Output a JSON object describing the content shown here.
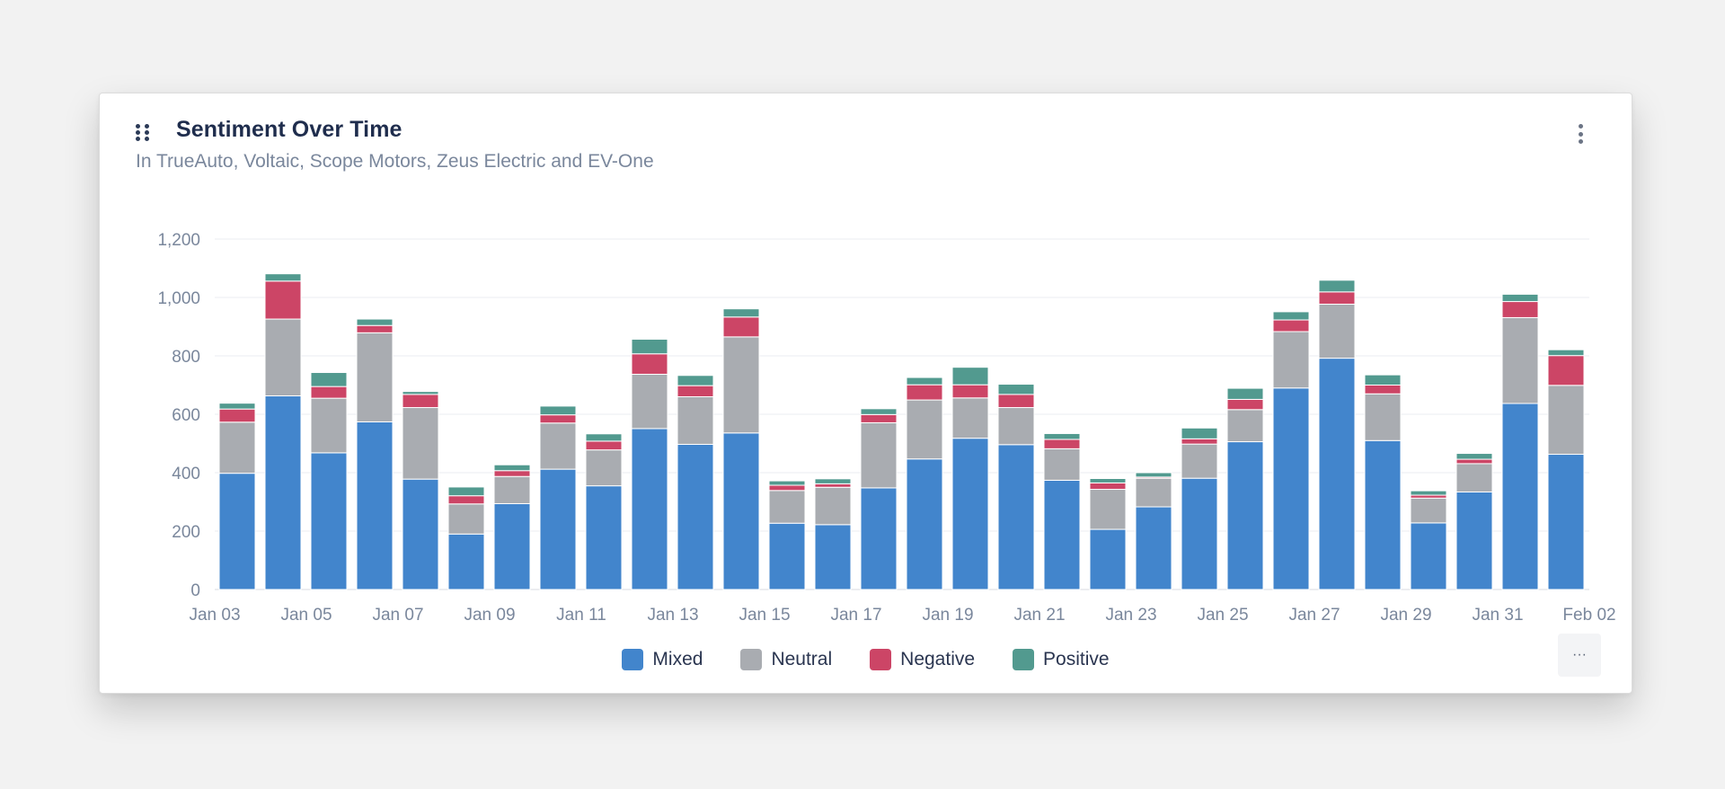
{
  "card": {
    "title": "Sentiment Over Time",
    "subtitle": "In TrueAuto, Voltaic, Scope Motors, Zeus Electric and EV-One",
    "more_label": "···",
    "icons": {
      "drag": "drag-handle-icon",
      "menu": "kebab-menu-icon"
    }
  },
  "chart_data": {
    "type": "bar",
    "stacked": true,
    "title": "Sentiment Over Time",
    "subtitle": "In TrueAuto, Voltaic, Scope Motors, Zeus Electric and EV-One",
    "ylim": [
      0,
      1200
    ],
    "yticks": [
      0,
      200,
      400,
      600,
      800,
      1000,
      1200
    ],
    "ytick_labels": [
      "0",
      "200",
      "400",
      "600",
      "800",
      "1,000",
      "1,200"
    ],
    "grid": true,
    "legend_position": "bottom-center",
    "x_tick_labels": [
      "Jan 03",
      "Jan 05",
      "Jan 07",
      "Jan 09",
      "Jan 11",
      "Jan 13",
      "Jan 15",
      "Jan 17",
      "Jan 19",
      "Jan 21",
      "Jan 23",
      "Jan 25",
      "Jan 27",
      "Jan 29",
      "Jan 31",
      "Feb 02"
    ],
    "categories": [
      "Jan 03",
      "Jan 04",
      "Jan 05",
      "Jan 06",
      "Jan 07",
      "Jan 08",
      "Jan 09",
      "Jan 10",
      "Jan 11",
      "Jan 12",
      "Jan 13",
      "Jan 14",
      "Jan 15",
      "Jan 16",
      "Jan 17",
      "Jan 18",
      "Jan 19",
      "Jan 20",
      "Jan 21",
      "Jan 22",
      "Jan 23",
      "Jan 24",
      "Jan 25",
      "Jan 26",
      "Jan 27",
      "Jan 28",
      "Jan 29",
      "Jan 30",
      "Jan 31",
      "Feb 01"
    ],
    "series": [
      {
        "name": "Mixed",
        "color": "#4285cc",
        "values": [
          398,
          663,
          468,
          574,
          378,
          190,
          294,
          412,
          355,
          551,
          497,
          536,
          227,
          222,
          348,
          447,
          518,
          496,
          374,
          206,
          283,
          381,
          506,
          690,
          792,
          510,
          228,
          334,
          637,
          463
        ]
      },
      {
        "name": "Neutral",
        "color": "#a9acb1",
        "values": [
          175,
          263,
          187,
          305,
          245,
          103,
          93,
          158,
          123,
          186,
          163,
          329,
          112,
          128,
          223,
          202,
          138,
          127,
          108,
          137,
          98,
          117,
          110,
          193,
          185,
          160,
          85,
          97,
          294,
          236
        ]
      },
      {
        "name": "Negative",
        "color": "#cc4566",
        "values": [
          45,
          130,
          40,
          25,
          45,
          28,
          20,
          28,
          30,
          70,
          38,
          68,
          18,
          12,
          28,
          52,
          45,
          45,
          32,
          22,
          4,
          18,
          35,
          40,
          42,
          30,
          10,
          15,
          55,
          102
        ]
      },
      {
        "name": "Positive",
        "color": "#529a8f",
        "values": [
          20,
          25,
          48,
          22,
          10,
          30,
          20,
          30,
          25,
          50,
          35,
          28,
          15,
          17,
          20,
          25,
          60,
          35,
          20,
          15,
          15,
          37,
          38,
          28,
          40,
          35,
          15,
          20,
          25,
          20
        ]
      }
    ]
  }
}
